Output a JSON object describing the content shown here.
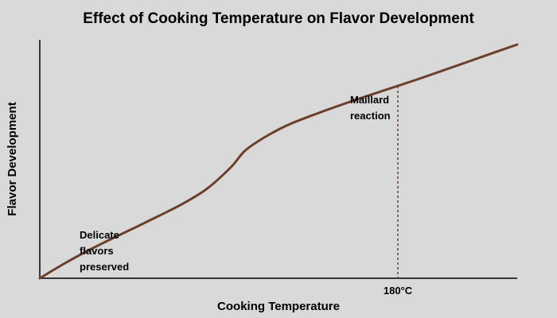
{
  "chart_data": {
    "type": "line",
    "title": "Effect of Cooking Temperature on Flavor Development",
    "xlabel": "Cooking Temperature",
    "ylabel": "Flavor Development",
    "grid": false,
    "x_tick_labels": [
      {
        "label": "180°C",
        "x": 0.75
      }
    ],
    "series": [
      {
        "color": "#6b3f2a",
        "x": [
          0.0,
          0.05,
          0.1,
          0.15,
          0.2,
          0.25,
          0.3,
          0.35,
          0.4,
          0.43,
          0.47,
          0.52,
          0.58,
          0.65,
          0.72,
          0.8,
          0.9,
          1.0
        ],
        "y": [
          0.0,
          0.06,
          0.115,
          0.165,
          0.213,
          0.262,
          0.313,
          0.375,
          0.465,
          0.535,
          0.59,
          0.643,
          0.69,
          0.74,
          0.787,
          0.84,
          0.91,
          0.98
        ]
      }
    ],
    "reference_lines": [
      {
        "x": 0.75,
        "style": "dashed",
        "color": "#6b3f2a"
      }
    ],
    "annotations": [
      {
        "lines": [
          "Delicate",
          "flavors",
          "preserved"
        ]
      },
      {
        "lines": [
          "Maillard",
          "reaction"
        ]
      }
    ]
  }
}
